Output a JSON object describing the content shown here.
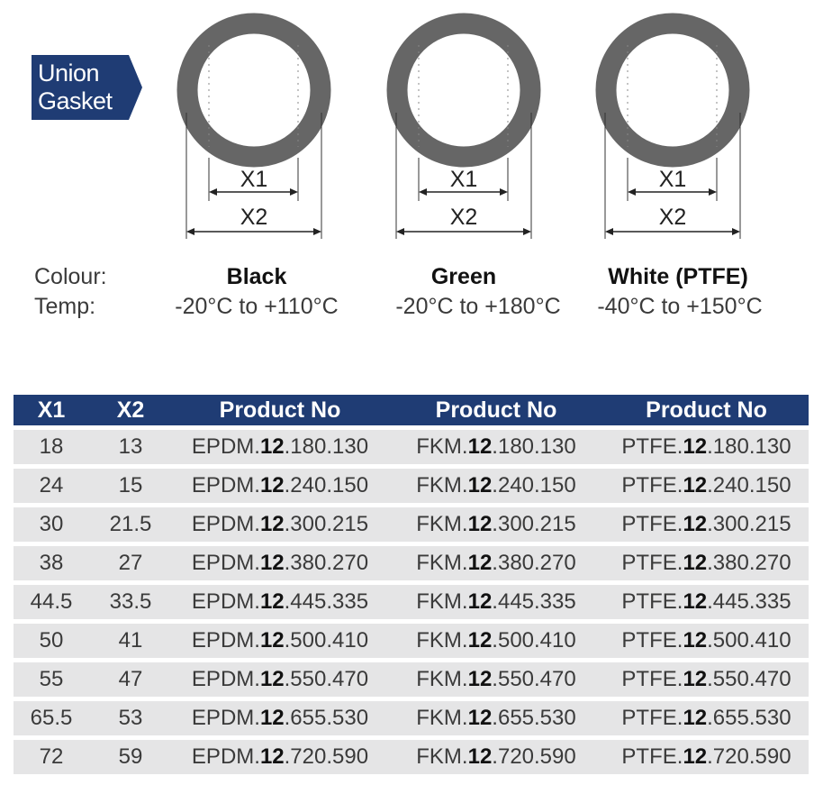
{
  "tag": {
    "line1": "Union",
    "line2": "Gasket",
    "color": "#1f3c74"
  },
  "gaskets": [
    {
      "name": "Black",
      "temp": "-20°C to +110°C",
      "x1": "X1",
      "x2": "X2"
    },
    {
      "name": "Green",
      "temp": "-20°C to +180°C",
      "x1": "X1",
      "x2": "X2"
    },
    {
      "name": "White (PTFE)",
      "temp": "-40°C to +150°C",
      "x1": "X1",
      "x2": "X2"
    }
  ],
  "labels": {
    "colour": "Colour:",
    "temp": "Temp:"
  },
  "table": {
    "headers": [
      "X1",
      "X2",
      "Product No",
      "Product No",
      "Product No"
    ],
    "prefixes": [
      "EPDM.",
      "FKM.",
      "PTFE."
    ],
    "code": "12",
    "rows": [
      {
        "x1": "18",
        "x2": "13",
        "suffix": ".180.130"
      },
      {
        "x1": "24",
        "x2": "15",
        "suffix": ".240.150"
      },
      {
        "x1": "30",
        "x2": "21.5",
        "suffix": ".300.215"
      },
      {
        "x1": "38",
        "x2": "27",
        "suffix": ".380.270"
      },
      {
        "x1": "44.5",
        "x2": "33.5",
        "suffix": ".445.335"
      },
      {
        "x1": "50",
        "x2": "41",
        "suffix": ".500.410"
      },
      {
        "x1": "55",
        "x2": "47",
        "suffix": ".550.470"
      },
      {
        "x1": "65.5",
        "x2": "53",
        "suffix": ".655.530"
      },
      {
        "x1": "72",
        "x2": "59",
        "suffix": ".720.590"
      }
    ]
  }
}
